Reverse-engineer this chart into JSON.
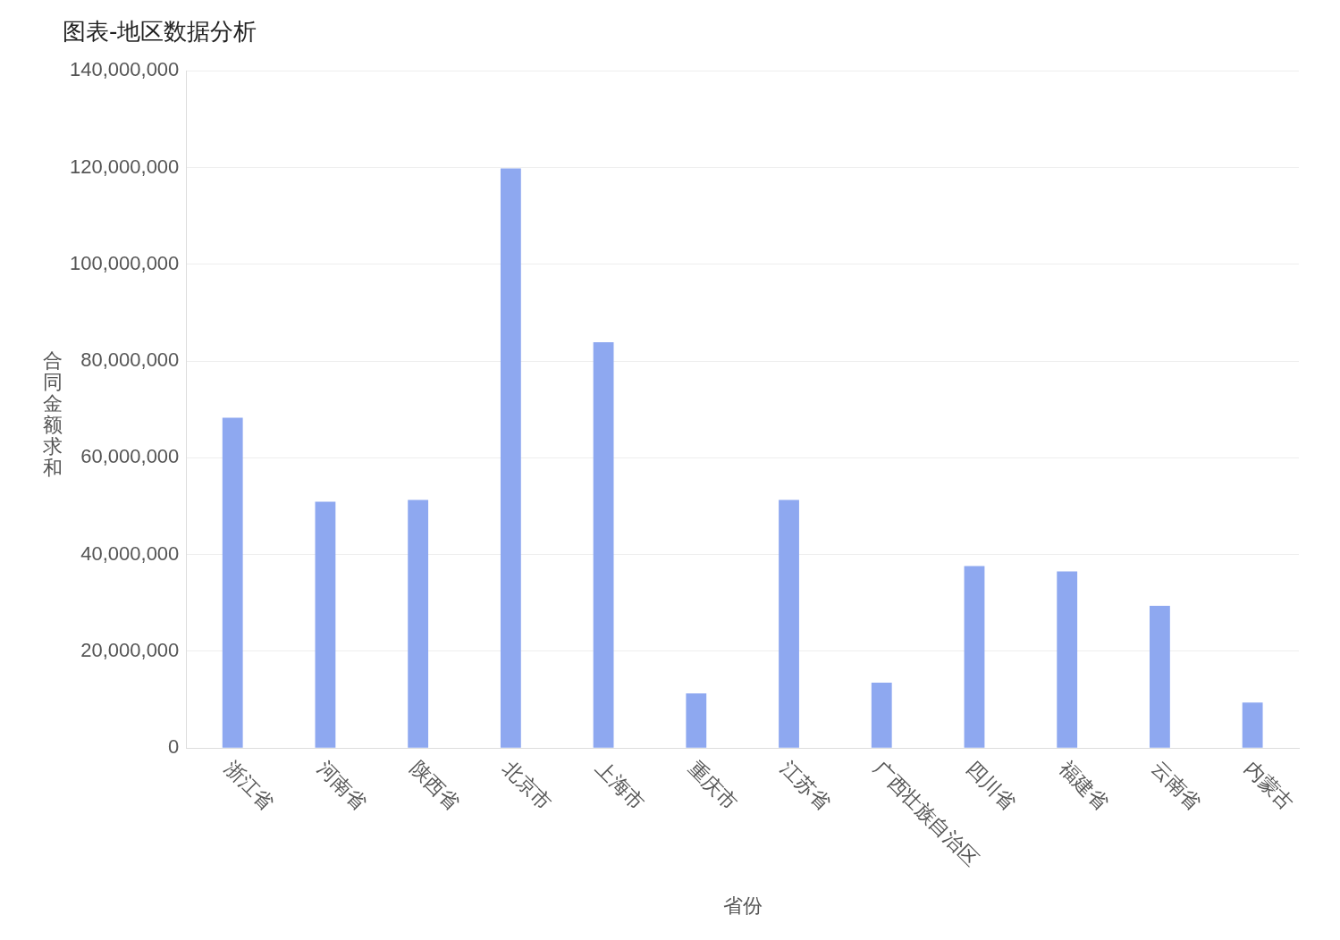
{
  "chart_data": {
    "type": "bar",
    "title": "图表-地区数据分析",
    "xlabel": "省份",
    "ylabel": "合同金额求和",
    "categories": [
      "浙江省",
      "河南省",
      "陕西省",
      "北京市",
      "上海市",
      "重庆市",
      "江苏省",
      "广西壮族自治区",
      "四川省",
      "福建省",
      "云南省",
      "内蒙古"
    ],
    "values": [
      68300000,
      50900000,
      51300000,
      119800000,
      83900000,
      11300000,
      51300000,
      13500000,
      37600000,
      36500000,
      29400000,
      9400000
    ],
    "color": "#8ea8f0",
    "ylim": [
      0,
      140000000
    ],
    "yticks": [
      0,
      {
        "value": 20000000,
        "label": "20,000,000"
      },
      {
        "value": 40000000,
        "label": "40,000,000"
      },
      {
        "value": 60000000,
        "label": "60,000,000"
      },
      {
        "value": 80000000,
        "label": "80,000,000"
      },
      {
        "value": 100000000,
        "label": "100,000,000"
      },
      {
        "value": 120000000,
        "label": "120,000,000"
      },
      {
        "value": 140000000,
        "label": "140,000,000"
      }
    ],
    "grid": "y"
  }
}
